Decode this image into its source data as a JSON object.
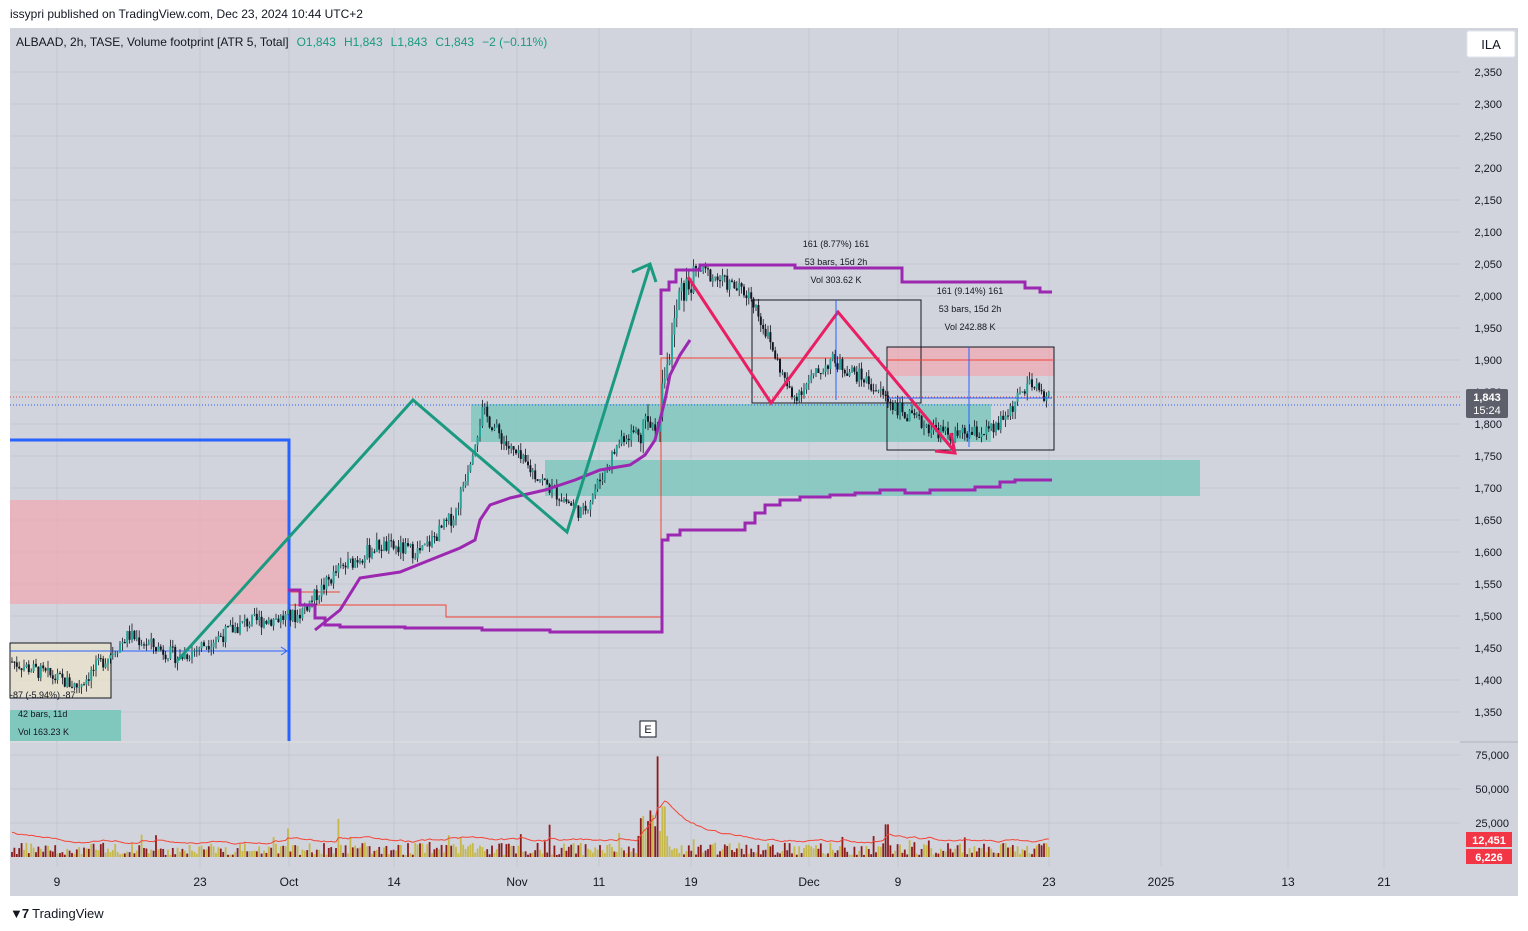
{
  "header": {
    "publisher": "issypri published on TradingView.com, Dec 23, 2024 10:44 UTC+2"
  },
  "legend": {
    "symbol": "ALBAAD, 2h, TASE, Volume footprint [ATR 5, Total]",
    "open": "O1,843",
    "high": "H1,843",
    "low": "L1,843",
    "close": "C1,843",
    "change": "−2 (−0.11%)"
  },
  "currency": "ILA",
  "earnings_marker": "E",
  "colors": {
    "background": "#d1d4dc",
    "up": "#26a69a",
    "down": "#131722",
    "purple": "#9c27b0",
    "blue": "#2962ff",
    "green_line": "#1a9a80",
    "pink_line": "#e91e63"
  },
  "price_axis": {
    "ticks": [
      "2,350",
      "2,300",
      "2,250",
      "2,200",
      "2,150",
      "2,100",
      "2,050",
      "2,000",
      "1,950",
      "1,900",
      "1,850",
      "1,800",
      "1,750",
      "1,700",
      "1,650",
      "1,600",
      "1,550",
      "1,500",
      "1,450",
      "1,400",
      "1,350"
    ],
    "last_price": "1,843",
    "countdown": "15:24"
  },
  "volume_axis": {
    "ticks": [
      "75,000",
      "50,000",
      "25,000"
    ],
    "volume_label": "12,451",
    "ma_label": "6,226"
  },
  "time_axis": {
    "ticks": [
      "9",
      "23",
      "Oct",
      "14",
      "Nov",
      "11",
      "19",
      "Dec",
      "9",
      "23",
      "2025",
      "13",
      "21"
    ]
  },
  "measurements": {
    "m1": {
      "line1": "161 (8.77%) 161",
      "line2": "53 bars, 15d 2h",
      "line3": "Vol 303.62 K"
    },
    "m2": {
      "line1": "161 (9.14%) 161",
      "line2": "53 bars, 15d 2h",
      "line3": "Vol 242.88 K"
    },
    "m3": {
      "line1": "-87 (-5.94%) -87",
      "line2": "42 bars, 11d",
      "line3": "Vol 163.23 K"
    }
  },
  "brand": "TradingView",
  "chart_data": {
    "type": "candlestick",
    "title": "ALBAAD, 2h, TASE",
    "ylim": [
      1320,
      2380
    ],
    "volume_ylim": [
      0,
      85000
    ],
    "x_range": [
      "Sep 2024",
      "Jan 2025"
    ],
    "last": 1843,
    "close_path": [
      {
        "date": "Sep 5",
        "price": 1430
      },
      {
        "date": "Sep 11",
        "price": 1390
      },
      {
        "date": "Sep 16",
        "price": 1470
      },
      {
        "date": "Sep 21",
        "price": 1435
      },
      {
        "date": "Sep 27",
        "price": 1490
      },
      {
        "date": "Oct 2",
        "price": 1500
      },
      {
        "date": "Oct 7",
        "price": 1570
      },
      {
        "date": "Oct 12",
        "price": 1610
      },
      {
        "date": "Oct 18",
        "price": 1600
      },
      {
        "date": "Oct 23",
        "price": 1660
      },
      {
        "date": "Oct 27",
        "price": 1820
      },
      {
        "date": "Oct 31",
        "price": 1760
      },
      {
        "date": "Nov 5",
        "price": 1700
      },
      {
        "date": "Nov 9",
        "price": 1660
      },
      {
        "date": "Nov 13",
        "price": 1780
      },
      {
        "date": "Nov 16",
        "price": 1800
      },
      {
        "date": "Nov 18",
        "price": 2000
      },
      {
        "date": "Nov 20",
        "price": 2040
      },
      {
        "date": "Nov 25",
        "price": 2000
      },
      {
        "date": "Nov 29",
        "price": 1840
      },
      {
        "date": "Dec 3",
        "price": 1900
      },
      {
        "date": "Dec 6",
        "price": 1870
      },
      {
        "date": "Dec 10",
        "price": 1810
      },
      {
        "date": "Dec 14",
        "price": 1780
      },
      {
        "date": "Dec 18",
        "price": 1790
      },
      {
        "date": "Dec 21",
        "price": 1860
      },
      {
        "date": "Dec 23",
        "price": 1843
      }
    ],
    "volume_spikes": [
      {
        "date": "Nov 16",
        "volume": 74000
      },
      {
        "date": "Oct 7",
        "volume": 28000
      },
      {
        "date": "Dec 8",
        "volume": 24000
      }
    ]
  }
}
